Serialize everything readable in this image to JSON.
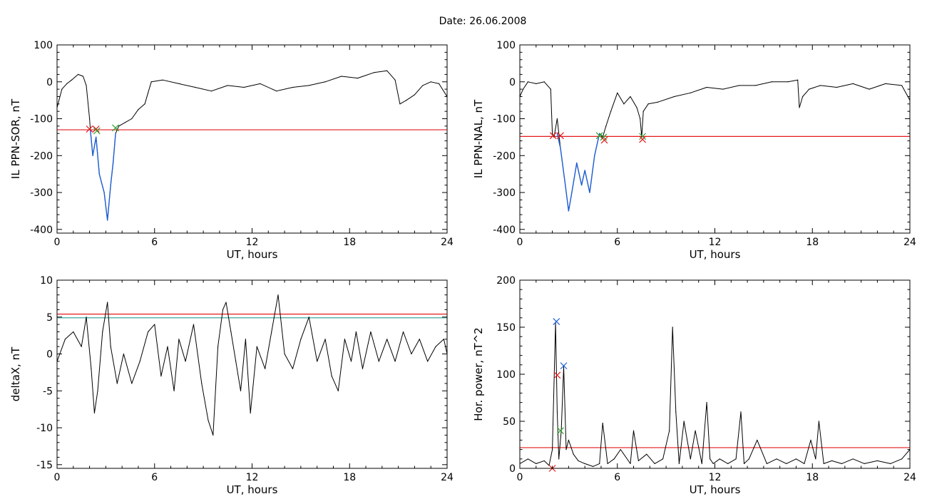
{
  "title": "Date:  26.06.2008",
  "colors": {
    "frame": "#000000",
    "threshold_red": "#e31a1c",
    "threshold_cyan": "#2a9d8f",
    "event_blue": "#1f5fd6",
    "mark_green": "#2ca02c"
  },
  "chart_data": [
    {
      "id": "sor",
      "type": "line",
      "xlabel": "UT, hours",
      "ylabel": "IL PPN-SOR, nT",
      "xlim": [
        0,
        24
      ],
      "ylim": [
        -410,
        100
      ],
      "xticks": [
        0,
        6,
        12,
        18,
        24
      ],
      "yticks": [
        100,
        0,
        -100,
        -200,
        -300,
        -400
      ],
      "grid": false,
      "series": [
        {
          "color": "#000000",
          "x": [
            0,
            0.3,
            0.6,
            0.9,
            1.3,
            1.6,
            1.8,
            2.0,
            2.05,
            2.2,
            2.4,
            2.6,
            2.9,
            3.1,
            3.3,
            3.45,
            3.6,
            3.8,
            4.2,
            4.6,
            5.0,
            5.4,
            5.6,
            5.8,
            6.5,
            7.5,
            8.5,
            9.5,
            10.5,
            11.5,
            12.5,
            13.5,
            14.5,
            15.5,
            16.5,
            17.5,
            18.5,
            19.5,
            20.3,
            20.8,
            21.1,
            21.5,
            22.0,
            22.5,
            23.0,
            23.5,
            24
          ],
          "y": [
            -70,
            -20,
            -5,
            5,
            20,
            15,
            -10,
            -100,
            -130,
            -200,
            -150,
            -250,
            -300,
            -375,
            -280,
            -220,
            -140,
            -120,
            -110,
            -100,
            -75,
            -60,
            -30,
            0,
            5,
            -5,
            -15,
            -25,
            -10,
            -15,
            -5,
            -25,
            -15,
            -10,
            0,
            15,
            10,
            25,
            30,
            5,
            -60,
            -50,
            -35,
            -10,
            0,
            -5,
            -40
          ]
        },
        {
          "color": "#1f5fd6",
          "x": [
            2.05,
            2.2,
            2.4,
            2.6,
            2.9,
            3.1,
            3.3,
            3.45,
            3.6
          ],
          "y": [
            -130,
            -200,
            -150,
            -250,
            -300,
            -375,
            -280,
            -220,
            -140
          ]
        }
      ],
      "thresholds": [
        {
          "y": -130,
          "color": "#e31a1c"
        }
      ],
      "markers": [
        {
          "x": 2.0,
          "y": -128,
          "color": "#e31a1c"
        },
        {
          "x": 2.4,
          "y": -128,
          "color": "#e31a1c"
        },
        {
          "x": 2.45,
          "y": -133,
          "color": "#2ca02c"
        },
        {
          "x": 3.6,
          "y": -125,
          "color": "#2ca02c"
        }
      ]
    },
    {
      "id": "nal",
      "type": "line",
      "xlabel": "UT, hours",
      "ylabel": "IL PPN-NAL, nT",
      "xlim": [
        0,
        24
      ],
      "ylim": [
        -410,
        100
      ],
      "xticks": [
        0,
        6,
        12,
        18,
        24
      ],
      "yticks": [
        100,
        0,
        -100,
        -200,
        -300,
        -400
      ],
      "grid": false,
      "series": [
        {
          "color": "#000000",
          "x": [
            0,
            0.2,
            0.5,
            1.0,
            1.5,
            1.9,
            2.0,
            2.1,
            2.3,
            2.5,
            2.8,
            3.0,
            3.2,
            3.5,
            3.8,
            4.0,
            4.3,
            4.6,
            4.9,
            5.1,
            5.3,
            5.6,
            6.0,
            6.4,
            6.8,
            7.2,
            7.4,
            7.5,
            7.6,
            7.9,
            8.5,
            9.5,
            10.5,
            11.5,
            12.5,
            13.5,
            14.5,
            15.5,
            16.5,
            17.1,
            17.2,
            17.4,
            17.8,
            18.5,
            19.5,
            20.5,
            21.5,
            22.5,
            23.5,
            24
          ],
          "y": [
            -40,
            -20,
            0,
            -5,
            0,
            -20,
            -140,
            -150,
            -100,
            -180,
            -280,
            -350,
            -300,
            -220,
            -280,
            -240,
            -300,
            -200,
            -140,
            -150,
            -120,
            -80,
            -30,
            -60,
            -40,
            -70,
            -100,
            -150,
            -80,
            -60,
            -55,
            -40,
            -30,
            -15,
            -20,
            -10,
            -10,
            0,
            0,
            5,
            -70,
            -40,
            -20,
            -10,
            -15,
            -5,
            -20,
            -5,
            -10,
            -50
          ]
        },
        {
          "color": "#1f5fd6",
          "x": [
            2.3,
            2.5,
            2.8,
            3.0,
            3.2,
            3.5,
            3.8,
            4.0,
            4.3,
            4.6,
            4.9
          ],
          "y": [
            -140,
            -180,
            -280,
            -350,
            -300,
            -220,
            -280,
            -240,
            -300,
            -200,
            -140
          ]
        }
      ],
      "thresholds": [
        {
          "y": -148,
          "color": "#e31a1c"
        }
      ],
      "markers": [
        {
          "x": 2.05,
          "y": -146,
          "color": "#e31a1c"
        },
        {
          "x": 2.5,
          "y": -146,
          "color": "#e31a1c"
        },
        {
          "x": 4.9,
          "y": -146,
          "color": "#2ca02c"
        },
        {
          "x": 5.15,
          "y": -150,
          "color": "#2ca02c"
        },
        {
          "x": 5.2,
          "y": -158,
          "color": "#e31a1c"
        },
        {
          "x": 7.55,
          "y": -148,
          "color": "#2ca02c"
        },
        {
          "x": 7.55,
          "y": -156,
          "color": "#e31a1c"
        }
      ]
    },
    {
      "id": "deltax",
      "type": "line",
      "xlabel": "UT, hours",
      "ylabel": "deltaX, nT",
      "xlim": [
        0,
        24
      ],
      "ylim": [
        -15.5,
        10
      ],
      "xticks": [
        0,
        6,
        12,
        18,
        24
      ],
      "yticks": [
        10,
        5,
        0,
        -5,
        -10,
        -15
      ],
      "grid": false,
      "series": [
        {
          "color": "#000000",
          "x": [
            0,
            0.5,
            1.0,
            1.5,
            1.8,
            2.1,
            2.3,
            2.5,
            2.8,
            3.1,
            3.3,
            3.7,
            4.1,
            4.6,
            5.1,
            5.6,
            6.0,
            6.4,
            6.8,
            7.2,
            7.5,
            7.9,
            8.4,
            8.9,
            9.3,
            9.6,
            9.9,
            10.2,
            10.4,
            10.7,
            11.0,
            11.3,
            11.6,
            11.9,
            12.3,
            12.8,
            13.2,
            13.6,
            14.0,
            14.5,
            15.0,
            15.5,
            16.0,
            16.5,
            16.9,
            17.3,
            17.7,
            18.1,
            18.4,
            18.8,
            19.3,
            19.8,
            20.3,
            20.8,
            21.3,
            21.8,
            22.3,
            22.8,
            23.3,
            23.8,
            24
          ],
          "y": [
            -1,
            2,
            3,
            1,
            5,
            -2,
            -8,
            -5,
            3,
            7,
            1,
            -4,
            0,
            -4,
            -1,
            3,
            4,
            -3,
            1,
            -5,
            2,
            -1,
            4,
            -4,
            -9,
            -11,
            1,
            6,
            7,
            3,
            -1,
            -5,
            2,
            -8,
            1,
            -2,
            3,
            8,
            0,
            -2,
            2,
            5,
            -1,
            2,
            -3,
            -5,
            2,
            -1,
            3,
            -2,
            3,
            -1,
            2,
            -1,
            3,
            0,
            2,
            -1,
            1,
            2,
            0
          ]
        }
      ],
      "thresholds": [
        {
          "y": 5.4,
          "color": "#e31a1c"
        },
        {
          "y": 4.9,
          "color": "#2a9d8f"
        }
      ],
      "markers": []
    },
    {
      "id": "power",
      "type": "line",
      "xlabel": "UT, hours",
      "ylabel": "Hor. power, nT^2",
      "xlim": [
        0,
        24
      ],
      "ylim": [
        0,
        200
      ],
      "xticks": [
        0,
        6,
        12,
        18,
        24
      ],
      "yticks": [
        200,
        150,
        100,
        50,
        0
      ],
      "grid": false,
      "series": [
        {
          "color": "#000000",
          "x": [
            0,
            0.5,
            1.0,
            1.5,
            1.8,
            2.0,
            2.2,
            2.3,
            2.4,
            2.55,
            2.7,
            2.85,
            3.0,
            3.3,
            3.6,
            4.0,
            4.5,
            4.9,
            5.1,
            5.4,
            5.8,
            6.2,
            6.8,
            7.0,
            7.3,
            7.8,
            8.3,
            8.8,
            9.2,
            9.4,
            9.6,
            9.8,
            10.1,
            10.5,
            10.8,
            11.2,
            11.5,
            11.7,
            11.9,
            12.3,
            12.8,
            13.3,
            13.6,
            13.8,
            14.1,
            14.6,
            15.2,
            15.8,
            16.4,
            17.0,
            17.5,
            17.9,
            18.2,
            18.4,
            18.7,
            19.2,
            19.8,
            20.5,
            21.2,
            22.0,
            22.8,
            23.5,
            24
          ],
          "y": [
            5,
            10,
            5,
            8,
            3,
            20,
            155,
            60,
            10,
            40,
            108,
            20,
            30,
            15,
            8,
            5,
            2,
            5,
            48,
            5,
            10,
            20,
            5,
            40,
            8,
            15,
            5,
            10,
            40,
            150,
            60,
            5,
            50,
            10,
            40,
            5,
            70,
            10,
            5,
            10,
            5,
            10,
            60,
            5,
            10,
            30,
            5,
            10,
            5,
            10,
            5,
            30,
            10,
            50,
            5,
            8,
            5,
            10,
            5,
            8,
            5,
            10,
            20
          ]
        }
      ],
      "thresholds": [
        {
          "y": 22,
          "color": "#e31a1c"
        }
      ],
      "markers": [
        {
          "x": 2.25,
          "y": 156,
          "color": "#1f5fd6"
        },
        {
          "x": 2.7,
          "y": 109,
          "color": "#1f5fd6"
        },
        {
          "x": 2.3,
          "y": 99,
          "color": "#e31a1c"
        },
        {
          "x": 2.5,
          "y": 40,
          "color": "#2ca02c"
        },
        {
          "x": 2.0,
          "y": 0,
          "color": "#e31a1c"
        }
      ]
    }
  ]
}
